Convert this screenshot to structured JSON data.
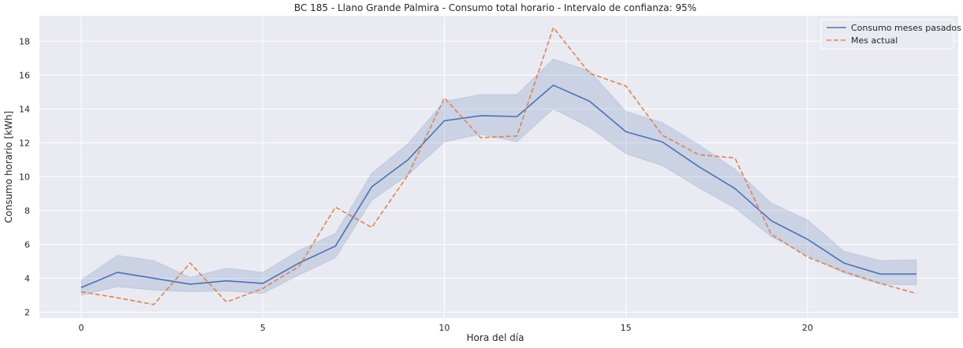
{
  "chart_data": {
    "type": "line",
    "title": "BC 185 - Llano Grande Palmira - Consumo total horario - Intervalo de confianza: 95%",
    "xlabel": "Hora del día",
    "ylabel": "Consumo horario [kWh]",
    "xlim": [
      -1.15,
      24.15
    ],
    "ylim": [
      1.65,
      19.5
    ],
    "xticks": [
      0,
      5,
      10,
      15,
      20
    ],
    "yticks": [
      2,
      4,
      6,
      8,
      10,
      12,
      14,
      16,
      18
    ],
    "grid": true,
    "legend_position": "top-right",
    "x": [
      0,
      1,
      2,
      3,
      4,
      5,
      6,
      7,
      8,
      9,
      10,
      11,
      12,
      13,
      14,
      15,
      16,
      17,
      18,
      19,
      20,
      21,
      22,
      23
    ],
    "series": [
      {
        "name": "Consumo meses pasados",
        "color": "#4c72b0",
        "style": "solid",
        "values": [
          3.45,
          4.35,
          4.0,
          3.65,
          3.85,
          3.7,
          4.9,
          5.9,
          9.4,
          11.0,
          13.3,
          13.6,
          13.55,
          15.4,
          14.45,
          12.65,
          12.05,
          10.6,
          9.3,
          7.4,
          6.3,
          4.9,
          4.25,
          4.25
        ],
        "ci_lower": [
          3.0,
          3.5,
          3.3,
          3.2,
          3.25,
          3.1,
          4.2,
          5.2,
          8.6,
          10.1,
          12.05,
          12.5,
          12.05,
          14.0,
          12.9,
          11.35,
          10.65,
          9.35,
          8.15,
          6.45,
          5.35,
          4.3,
          3.65,
          3.6
        ],
        "ci_upper": [
          3.9,
          5.35,
          5.05,
          4.05,
          4.6,
          4.35,
          5.65,
          6.65,
          10.2,
          11.95,
          14.45,
          14.85,
          14.85,
          16.95,
          16.25,
          13.85,
          13.2,
          11.9,
          10.45,
          8.45,
          7.45,
          5.6,
          5.05,
          5.1
        ]
      },
      {
        "name": "Mes actual",
        "color": "#dd8452",
        "style": "dashed",
        "values": [
          3.2,
          2.85,
          2.45,
          4.9,
          2.6,
          3.4,
          4.7,
          8.2,
          7.0,
          10.1,
          14.65,
          12.3,
          12.4,
          18.8,
          16.1,
          15.35,
          12.45,
          11.3,
          11.1,
          6.6,
          5.25,
          4.4,
          3.7,
          3.1
        ]
      }
    ]
  }
}
